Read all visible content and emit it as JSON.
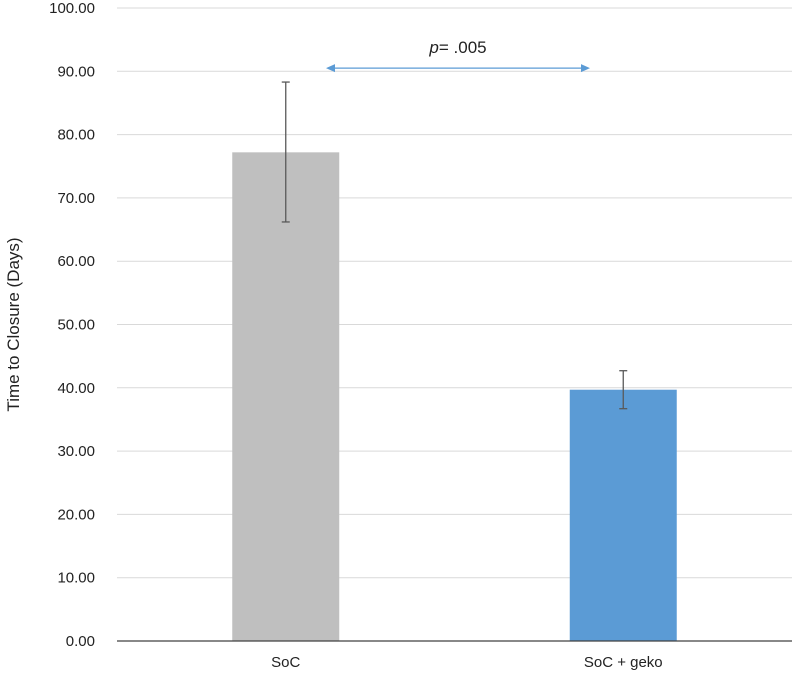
{
  "chart_data": {
    "type": "bar",
    "categories": [
      "SoC",
      "SoC + geko"
    ],
    "values": [
      77.2,
      39.7
    ],
    "error_upper": [
      88.3,
      42.7
    ],
    "error_lower": [
      66.2,
      36.7
    ],
    "colors": [
      "#bfbfbf",
      "#5b9bd5"
    ],
    "ylabel": "Time to Closure (Days)",
    "xlabel": "",
    "title": "",
    "ylim": [
      0,
      100
    ],
    "yticks": [
      "0.00",
      "10.00",
      "20.00",
      "30.00",
      "40.00",
      "50.00",
      "60.00",
      "70.00",
      "80.00",
      "90.00",
      "100.00"
    ],
    "grid": true,
    "annotation": {
      "p_symbol": "p",
      "p_text": "= .005",
      "arrow_color": "#5b9bd5",
      "arrow_y": 90.5
    }
  }
}
